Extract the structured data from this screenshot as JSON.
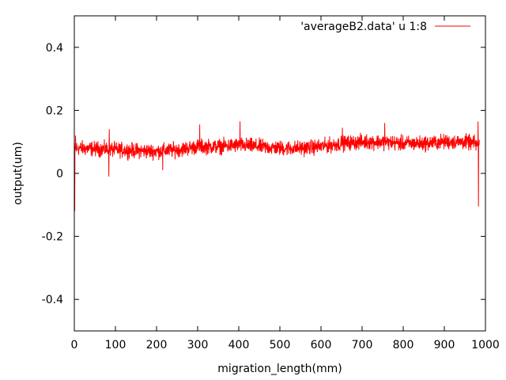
{
  "chart_data": {
    "type": "line",
    "title": "",
    "xlabel": "migration_length(mm)",
    "ylabel": "output(um)",
    "xlim": [
      0,
      1000
    ],
    "ylim": [
      -0.5,
      0.5
    ],
    "x_ticks": [
      0,
      100,
      200,
      300,
      400,
      500,
      600,
      700,
      800,
      900,
      1000
    ],
    "x_tick_labels": [
      "0",
      "100",
      "200",
      "300",
      "400",
      "500",
      "600",
      "700",
      "800",
      "900",
      "1000"
    ],
    "y_ticks": [
      -0.4,
      -0.2,
      0,
      0.2,
      0.4
    ],
    "y_tick_labels": [
      "-0.4",
      "-0.2",
      "0",
      "0.2",
      "0.4"
    ],
    "grid": false,
    "legend_position": "top-right",
    "series": [
      {
        "name": "'averageB2.data' u 1:8",
        "color": "#ff0000",
        "x_step": 0.5,
        "trend_x": [
          0,
          3,
          10,
          50,
          100,
          150,
          200,
          250,
          300,
          350,
          400,
          450,
          500,
          550,
          600,
          650,
          700,
          750,
          800,
          850,
          900,
          950,
          975,
          985
        ],
        "trend_y": [
          0.075,
          0.08,
          0.08,
          0.078,
          0.075,
          0.072,
          0.07,
          0.075,
          0.085,
          0.085,
          0.09,
          0.085,
          0.08,
          0.08,
          0.085,
          0.095,
          0.1,
          0.1,
          0.095,
          0.095,
          0.1,
          0.1,
          0.095,
          0.09
        ],
        "spread": 0.035,
        "spikes": [
          {
            "x": 1,
            "y": -0.12
          },
          {
            "x": 3,
            "y": 0.12
          },
          {
            "x": 85,
            "y": 0.14
          },
          {
            "x": 84,
            "y": -0.01
          },
          {
            "x": 215,
            "y": 0.01
          },
          {
            "x": 305,
            "y": 0.155
          },
          {
            "x": 403,
            "y": 0.165
          },
          {
            "x": 652,
            "y": 0.145
          },
          {
            "x": 755,
            "y": 0.16
          },
          {
            "x": 982,
            "y": 0.165
          },
          {
            "x": 983,
            "y": -0.105
          }
        ]
      }
    ]
  }
}
